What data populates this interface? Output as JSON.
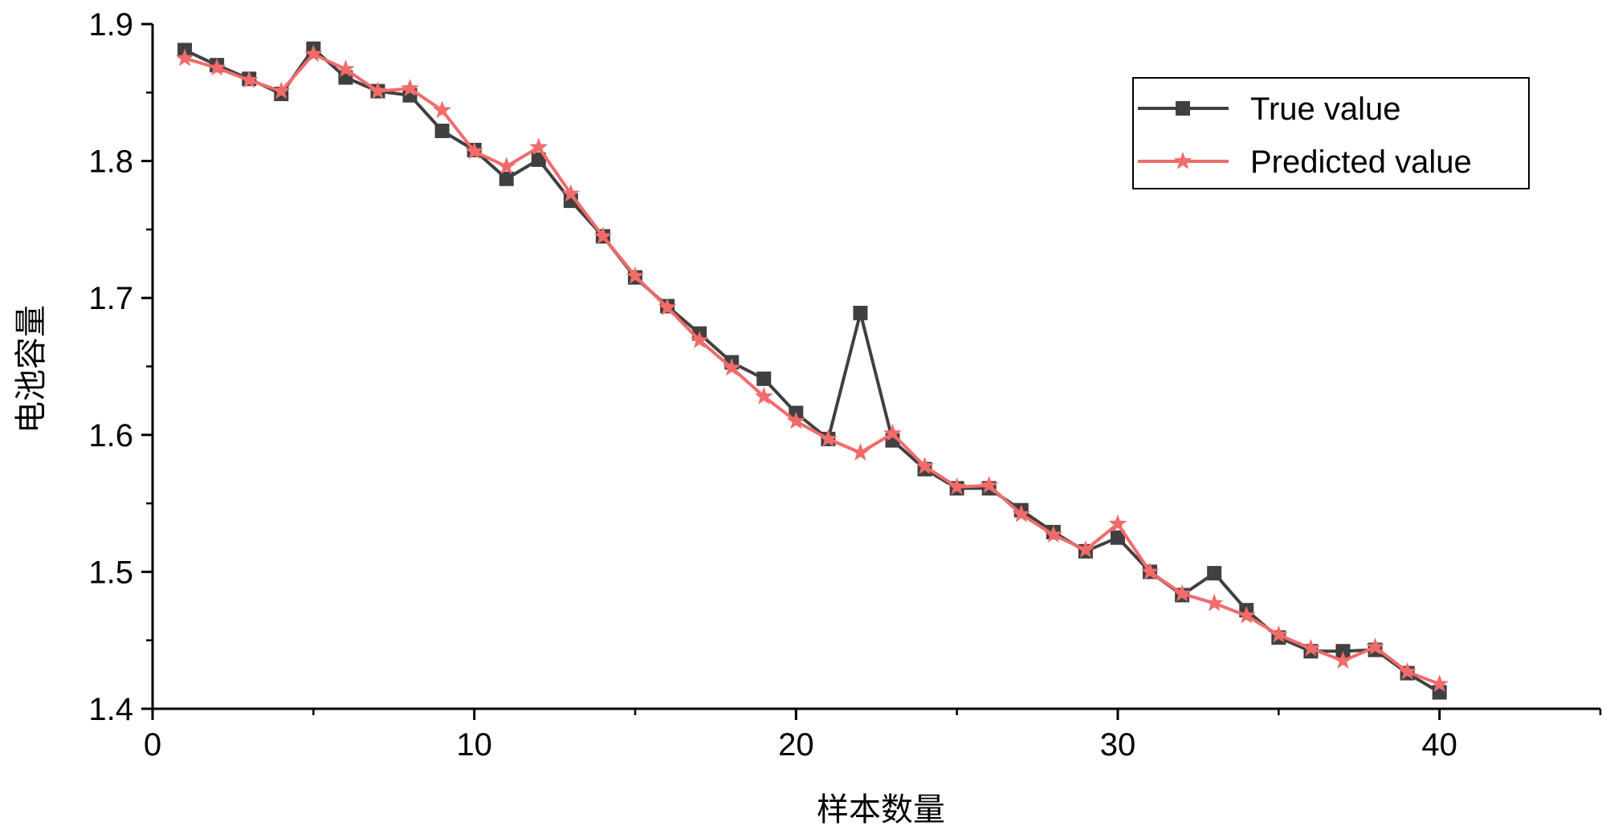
{
  "chart_data": {
    "type": "line",
    "title": "",
    "xlabel": "样本数量",
    "ylabel": "电池容量",
    "xlim": [
      0,
      45
    ],
    "ylim": [
      1.4,
      1.9
    ],
    "xticks": [
      "0",
      "10",
      "20",
      "30",
      "40"
    ],
    "yticks": [
      "1.4",
      "1.5",
      "1.6",
      "1.7",
      "1.8",
      "1.9"
    ],
    "grid": false,
    "legend_position": "top-right",
    "x": [
      1,
      2,
      3,
      4,
      5,
      6,
      7,
      8,
      9,
      10,
      11,
      12,
      13,
      14,
      15,
      16,
      17,
      18,
      19,
      20,
      21,
      22,
      23,
      24,
      25,
      26,
      27,
      28,
      29,
      30,
      31,
      32,
      33,
      34,
      35,
      36,
      37,
      38,
      39,
      40
    ],
    "series": [
      {
        "name": "True value",
        "color": "#404040",
        "marker": "square",
        "values": [
          1.881,
          1.87,
          1.86,
          1.849,
          1.882,
          1.861,
          1.851,
          1.848,
          1.822,
          1.808,
          1.787,
          1.801,
          1.771,
          1.745,
          1.715,
          1.694,
          1.674,
          1.653,
          1.641,
          1.616,
          1.597,
          1.689,
          1.596,
          1.575,
          1.561,
          1.561,
          1.545,
          1.529,
          1.515,
          1.525,
          1.5,
          1.483,
          1.499,
          1.472,
          1.452,
          1.442,
          1.442,
          1.443,
          1.426,
          1.412
        ]
      },
      {
        "name": "Predicted value",
        "color": "#F26B6B",
        "marker": "star",
        "values": [
          1.875,
          1.868,
          1.859,
          1.851,
          1.878,
          1.867,
          1.851,
          1.853,
          1.837,
          1.807,
          1.796,
          1.81,
          1.776,
          1.745,
          1.716,
          1.693,
          1.669,
          1.649,
          1.628,
          1.61,
          1.597,
          1.587,
          1.601,
          1.577,
          1.562,
          1.563,
          1.542,
          1.527,
          1.516,
          1.535,
          1.5,
          1.484,
          1.477,
          1.468,
          1.454,
          1.444,
          1.435,
          1.445,
          1.427,
          1.418
        ]
      }
    ]
  }
}
